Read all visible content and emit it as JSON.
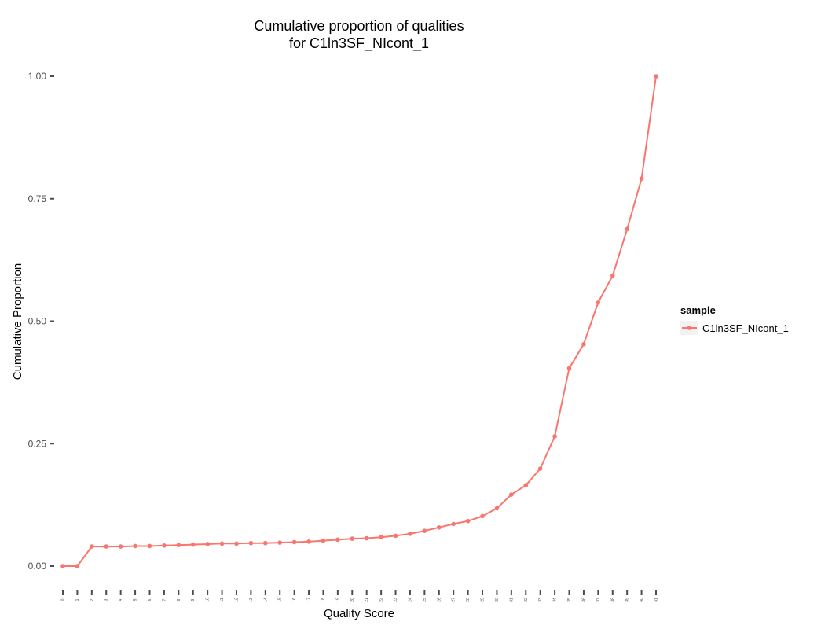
{
  "chart_data": {
    "type": "line",
    "title": "Cumulative proportion of qualities",
    "subtitle": "for C1ln3SF_NIcont_1",
    "xlabel": "Quality Score",
    "ylabel": "Cumulative Proportion",
    "ylim": [
      0,
      1
    ],
    "yticks": [
      0.0,
      0.25,
      0.5,
      0.75,
      1.0
    ],
    "ytick_labels": [
      "0.00",
      "0.25",
      "0.50",
      "0.75",
      "1.00"
    ],
    "x": [
      0,
      1,
      2,
      3,
      4,
      5,
      6,
      7,
      8,
      9,
      10,
      11,
      12,
      13,
      14,
      15,
      16,
      17,
      18,
      19,
      20,
      21,
      22,
      23,
      24,
      25,
      26,
      27,
      28,
      29,
      30,
      31,
      32,
      33,
      34,
      35,
      36,
      37,
      38,
      39,
      40,
      41
    ],
    "x_tick_labels": [
      "0",
      "1",
      "2",
      "3",
      "4",
      "5",
      "6",
      "7",
      "8",
      "9",
      "10",
      "11",
      "12",
      "13",
      "14",
      "15",
      "16",
      "17",
      "18",
      "19",
      "20",
      "21",
      "22",
      "23",
      "24",
      "25",
      "26",
      "27",
      "28",
      "29",
      "30",
      "31",
      "32",
      "33",
      "34",
      "35",
      "36",
      "37",
      "38",
      "39",
      "40",
      "41"
    ],
    "series": [
      {
        "name": "C1ln3SF_NIcont_1",
        "color": "#F8766D",
        "values": [
          0.0,
          0.0,
          0.04,
          0.04,
          0.04,
          0.041,
          0.041,
          0.042,
          0.043,
          0.044,
          0.045,
          0.046,
          0.046,
          0.047,
          0.047,
          0.048,
          0.049,
          0.05,
          0.052,
          0.054,
          0.056,
          0.057,
          0.059,
          0.062,
          0.066,
          0.072,
          0.079,
          0.086,
          0.092,
          0.102,
          0.118,
          0.146,
          0.165,
          0.199,
          0.265,
          0.404,
          0.453,
          0.538,
          0.593,
          0.688,
          0.791,
          1.0
        ]
      }
    ],
    "grid": false,
    "legend": {
      "title": "sample",
      "placement": "right"
    }
  }
}
